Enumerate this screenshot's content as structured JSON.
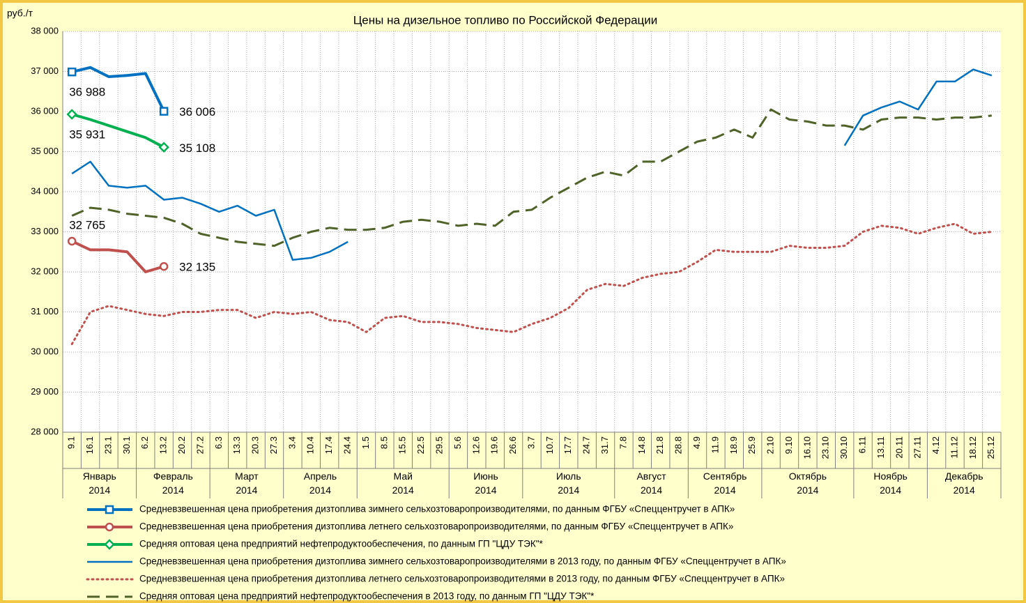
{
  "chart_data": {
    "type": "line",
    "title": "Цены на дизельное топливо по Российской Федерации",
    "y_unit": "руб./т",
    "categories": [
      "9.1",
      "16.1",
      "23.1",
      "30.1",
      "6.2",
      "13.2",
      "20.2",
      "27.2",
      "6.3",
      "13.3",
      "20.3",
      "27.3",
      "3.4",
      "10.4",
      "17.4",
      "24.4",
      "1.5",
      "8.5",
      "15.5",
      "22.5",
      "29.5",
      "5.6",
      "12.6",
      "19.6",
      "26.6",
      "3.7",
      "10.7",
      "17.7",
      "24.7",
      "31.7",
      "7.8",
      "14.8",
      "21.8",
      "28.8",
      "4.9",
      "11.9",
      "18.9",
      "25.9",
      "2.10",
      "9.10",
      "16.10",
      "23.10",
      "30.10",
      "6.11",
      "13.11",
      "20.11",
      "27.11",
      "4.12",
      "11.12",
      "18.12",
      "25.12"
    ],
    "month_labels": [
      "Январь 2014",
      "Февраль 2014",
      "Март 2014",
      "Апрель 2014",
      "Май 2014",
      "Июнь 2014",
      "Июль 2014",
      "Август 2014",
      "Сентябрь 2014",
      "Октябрь 2014",
      "Ноябрь 2014",
      "Декабрь 2014"
    ],
    "ylim": [
      28000,
      38000
    ],
    "yticks": [
      {
        "value": 28000,
        "label": "28 000"
      },
      {
        "value": 29000,
        "label": "29 000"
      },
      {
        "value": 30000,
        "label": "30 000"
      },
      {
        "value": 31000,
        "label": "31 000"
      },
      {
        "value": 32000,
        "label": "32 000"
      },
      {
        "value": 33000,
        "label": "33 000"
      },
      {
        "value": 34000,
        "label": "34 000"
      },
      {
        "value": 35000,
        "label": "35 000"
      },
      {
        "value": 36000,
        "label": "36 000"
      },
      {
        "value": 37000,
        "label": "37 000"
      },
      {
        "value": 38000,
        "label": "38 000"
      }
    ],
    "grid": true,
    "series": [
      {
        "name": "Средневзвешенная цена приобретения дизтоплива зимнего сельхозтоваропроизводителями, по данным ФГБУ «Спеццентручет в АПК»",
        "color": "#0070c0",
        "width": 4,
        "dash": "solid",
        "marker": "square",
        "values": [
          36988,
          37100,
          36870,
          36900,
          36950,
          36006,
          null,
          null,
          null,
          null,
          null,
          null,
          null,
          null,
          null,
          null,
          null,
          null,
          null,
          null,
          null,
          null,
          null,
          null,
          null,
          null,
          null,
          null,
          null,
          null,
          null,
          null,
          null,
          null,
          null,
          null,
          null,
          null,
          null,
          null,
          null,
          null,
          null,
          null,
          null,
          null,
          null,
          null,
          null,
          null,
          null
        ],
        "value_labels": [
          "36 988",
          null,
          null,
          null,
          null,
          "36 006",
          null,
          null,
          null,
          null,
          null,
          null,
          null,
          null,
          null,
          null,
          null,
          null,
          null,
          null,
          null,
          null,
          null,
          null,
          null,
          null,
          null,
          null,
          null,
          null,
          null,
          null,
          null,
          null,
          null,
          null,
          null,
          null,
          null,
          null,
          null,
          null,
          null,
          null,
          null,
          null,
          null,
          null,
          null,
          null,
          null
        ]
      },
      {
        "name": "Средневзвешенная цена приобретения дизтоплива летнего сельхозтоваропроизводителями, по данным ФГБУ «Спеццентручет в АПК»",
        "color": "#c0504d",
        "width": 4,
        "dash": "solid",
        "marker": "circle",
        "values": [
          32765,
          32550,
          32550,
          32500,
          32000,
          32135,
          null,
          null,
          null,
          null,
          null,
          null,
          null,
          null,
          null,
          null,
          null,
          null,
          null,
          null,
          null,
          null,
          null,
          null,
          null,
          null,
          null,
          null,
          null,
          null,
          null,
          null,
          null,
          null,
          null,
          null,
          null,
          null,
          null,
          null,
          null,
          null,
          null,
          null,
          null,
          null,
          null,
          null,
          null,
          null,
          null
        ],
        "value_labels": [
          "32 765",
          null,
          null,
          null,
          null,
          "32 135",
          null,
          null,
          null,
          null,
          null,
          null,
          null,
          null,
          null,
          null,
          null,
          null,
          null,
          null,
          null,
          null,
          null,
          null,
          null,
          null,
          null,
          null,
          null,
          null,
          null,
          null,
          null,
          null,
          null,
          null,
          null,
          null,
          null,
          null,
          null,
          null,
          null,
          null,
          null,
          null,
          null,
          null,
          null,
          null,
          null
        ]
      },
      {
        "name": "Средняя оптовая цена предприятий нефтепродуктообеспечения, по данным ГП \"ЦДУ ТЭК\"*",
        "color": "#00b050",
        "width": 4,
        "dash": "solid",
        "marker": "diamond",
        "values": [
          35931,
          35800,
          35650,
          35500,
          35350,
          35108,
          null,
          null,
          null,
          null,
          null,
          null,
          null,
          null,
          null,
          null,
          null,
          null,
          null,
          null,
          null,
          null,
          null,
          null,
          null,
          null,
          null,
          null,
          null,
          null,
          null,
          null,
          null,
          null,
          null,
          null,
          null,
          null,
          null,
          null,
          null,
          null,
          null,
          null,
          null,
          null,
          null,
          null,
          null,
          null,
          null
        ],
        "value_labels": [
          "35 931",
          null,
          null,
          null,
          null,
          "35 108",
          null,
          null,
          null,
          null,
          null,
          null,
          null,
          null,
          null,
          null,
          null,
          null,
          null,
          null,
          null,
          null,
          null,
          null,
          null,
          null,
          null,
          null,
          null,
          null,
          null,
          null,
          null,
          null,
          null,
          null,
          null,
          null,
          null,
          null,
          null,
          null,
          null,
          null,
          null,
          null,
          null,
          null,
          null,
          null,
          null
        ]
      },
      {
        "name": "Средневзвешенная цена приобретения дизтоплива зимнего сельхозтоваропроизводителями в 2013 году, по данным ФГБУ «Спеццентручет в АПК»",
        "color": "#0070c0",
        "width": 2.5,
        "dash": "solid",
        "values": [
          34450,
          34750,
          34150,
          34100,
          34150,
          33800,
          33850,
          33700,
          33500,
          33650,
          33400,
          33550,
          32300,
          32350,
          32500,
          32750,
          null,
          null,
          null,
          null,
          null,
          null,
          null,
          null,
          null,
          null,
          null,
          null,
          null,
          null,
          null,
          null,
          null,
          null,
          null,
          null,
          null,
          null,
          null,
          null,
          null,
          null,
          35150,
          35900,
          36100,
          36250,
          36050,
          36750,
          36750,
          37050,
          36900
        ]
      },
      {
        "name": "Средневзвешенная цена приобретения дизтоплива летнего сельхозтоваропроизводителями в 2013 году, по данным ФГБУ «Спеццентручет в АПК»",
        "color": "#c0504d",
        "width": 3,
        "dash": "dotted",
        "values": [
          30200,
          31000,
          31150,
          31050,
          30950,
          30900,
          31000,
          31000,
          31050,
          31050,
          30850,
          31000,
          30950,
          31000,
          30800,
          30750,
          30500,
          30850,
          30900,
          30750,
          30750,
          30700,
          30600,
          30550,
          30500,
          30700,
          30850,
          31100,
          31550,
          31700,
          31650,
          31850,
          31950,
          32000,
          32250,
          32550,
          32500,
          32500,
          32500,
          32650,
          32600,
          32600,
          32650,
          33000,
          33150,
          33100,
          32950,
          33100,
          33200,
          32950,
          33000
        ]
      },
      {
        "name": "Средняя оптовая цена предприятий нефтепродуктообеспечения в 2013 году, по данным ГП \"ЦДУ ТЭК\"*",
        "color": "#4f6228",
        "width": 3,
        "dash": "dashed",
        "values": [
          33400,
          33600,
          33550,
          33450,
          33400,
          33350,
          33200,
          32950,
          32850,
          32750,
          32700,
          32650,
          32850,
          33000,
          33100,
          33050,
          33050,
          33100,
          33250,
          33300,
          33250,
          33150,
          33200,
          33150,
          33500,
          33550,
          33850,
          34100,
          34350,
          34500,
          34400,
          34750,
          34750,
          35000,
          35250,
          35350,
          35550,
          35350,
          36050,
          35800,
          35750,
          35650,
          35650,
          35550,
          35800,
          35850,
          35850,
          35800,
          35850,
          35850,
          35900
        ]
      }
    ]
  }
}
